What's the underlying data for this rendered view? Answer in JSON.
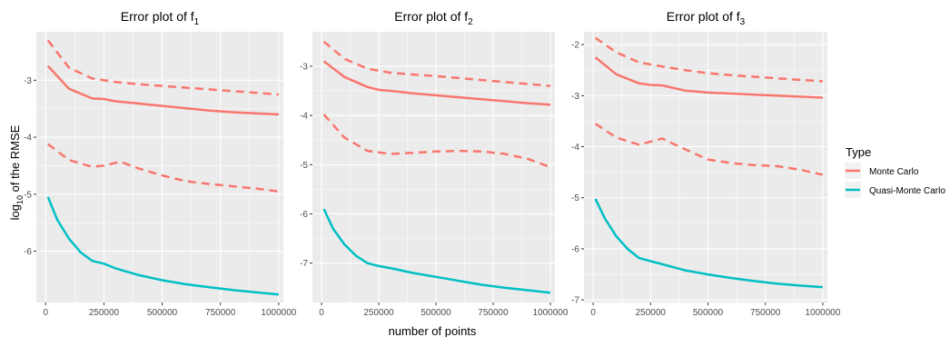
{
  "figure": {
    "ylabel_main": "log",
    "ylabel_sub": "10",
    "ylabel_rest": " of the RMSE",
    "xlabel": "number of points"
  },
  "legend": {
    "title": "Type",
    "items": [
      {
        "label": "Monte Carlo",
        "color": "#F8766D"
      },
      {
        "label": "Quasi-Monte Carlo",
        "color": "#00BFC4"
      }
    ]
  },
  "colors": {
    "panel_bg": "#EBEBEB",
    "grid_major": "#FFFFFF",
    "mc": "#F8766D",
    "qmc": "#00BFC4"
  },
  "chart_data": [
    {
      "type": "line",
      "title_main": "Error plot of f",
      "title_sub": "1",
      "xlim": [
        -40000,
        1020000
      ],
      "ylim": [
        -6.9,
        -2.15
      ],
      "x_ticks": [
        0,
        250000,
        500000,
        750000,
        1000000
      ],
      "x_tick_labels": [
        "0",
        "250000",
        "500000",
        "750000",
        "1000000"
      ],
      "y_ticks": [
        -3,
        -4,
        -5,
        -6
      ],
      "y_tick_labels": [
        "-3",
        "-4",
        "-5",
        "-6"
      ],
      "series": [
        {
          "name": "Monte Carlo",
          "style": "solid",
          "x": [
            10000,
            100000,
            200000,
            250000,
            300000,
            400000,
            500000,
            600000,
            700000,
            800000,
            900000,
            1000000
          ],
          "y": [
            -2.75,
            -3.15,
            -3.32,
            -3.33,
            -3.37,
            -3.41,
            -3.45,
            -3.49,
            -3.53,
            -3.56,
            -3.58,
            -3.6
          ]
        },
        {
          "name": "Monte Carlo",
          "style": "dashed",
          "x": [
            10000,
            100000,
            200000,
            300000,
            400000,
            500000,
            600000,
            700000,
            800000,
            900000,
            1000000
          ],
          "y": [
            -2.3,
            -2.78,
            -2.97,
            -3.03,
            -3.07,
            -3.1,
            -3.13,
            -3.16,
            -3.19,
            -3.22,
            -3.25
          ]
        },
        {
          "name": "Monte Carlo",
          "style": "dashed",
          "x": [
            10000,
            100000,
            200000,
            250000,
            320000,
            400000,
            500000,
            600000,
            700000,
            800000,
            900000,
            1000000
          ],
          "y": [
            -4.12,
            -4.4,
            -4.52,
            -4.5,
            -4.43,
            -4.55,
            -4.67,
            -4.77,
            -4.82,
            -4.86,
            -4.9,
            -4.95
          ]
        },
        {
          "name": "Quasi-Monte Carlo",
          "style": "solid",
          "x": [
            10000,
            50000,
            100000,
            150000,
            200000,
            250000,
            300000,
            400000,
            500000,
            600000,
            700000,
            800000,
            900000,
            1000000
          ],
          "y": [
            -5.05,
            -5.45,
            -5.78,
            -6.02,
            -6.17,
            -6.22,
            -6.3,
            -6.42,
            -6.51,
            -6.58,
            -6.63,
            -6.68,
            -6.72,
            -6.76
          ]
        }
      ]
    },
    {
      "type": "line",
      "title_main": "Error plot of f",
      "title_sub": "2",
      "xlim": [
        -40000,
        1020000
      ],
      "ylim": [
        -7.8,
        -2.3
      ],
      "x_ticks": [
        0,
        250000,
        500000,
        750000,
        1000000
      ],
      "x_tick_labels": [
        "0",
        "250000",
        "500000",
        "750000",
        "1000000"
      ],
      "y_ticks": [
        -3,
        -4,
        -5,
        -6,
        -7
      ],
      "y_tick_labels": [
        "-3",
        "-4",
        "-5",
        "-6",
        "-7"
      ],
      "series": [
        {
          "name": "Monte Carlo",
          "style": "solid",
          "x": [
            10000,
            100000,
            200000,
            250000,
            300000,
            400000,
            500000,
            600000,
            700000,
            800000,
            900000,
            1000000
          ],
          "y": [
            -2.9,
            -3.22,
            -3.42,
            -3.48,
            -3.5,
            -3.55,
            -3.59,
            -3.63,
            -3.67,
            -3.71,
            -3.75,
            -3.78
          ]
        },
        {
          "name": "Monte Carlo",
          "style": "dashed",
          "x": [
            10000,
            100000,
            200000,
            300000,
            400000,
            500000,
            600000,
            700000,
            800000,
            900000,
            1000000
          ],
          "y": [
            -2.5,
            -2.85,
            -3.05,
            -3.13,
            -3.17,
            -3.2,
            -3.24,
            -3.28,
            -3.32,
            -3.36,
            -3.4
          ]
        },
        {
          "name": "Monte Carlo",
          "style": "dashed",
          "x": [
            10000,
            100000,
            200000,
            300000,
            400000,
            500000,
            600000,
            700000,
            800000,
            900000,
            1000000
          ],
          "y": [
            -3.98,
            -4.45,
            -4.72,
            -4.78,
            -4.76,
            -4.73,
            -4.72,
            -4.73,
            -4.78,
            -4.88,
            -5.05
          ]
        },
        {
          "name": "Quasi-Monte Carlo",
          "style": "solid",
          "x": [
            10000,
            50000,
            100000,
            150000,
            200000,
            250000,
            300000,
            400000,
            500000,
            600000,
            700000,
            800000,
            900000,
            1000000
          ],
          "y": [
            -5.9,
            -6.3,
            -6.62,
            -6.85,
            -7.0,
            -7.06,
            -7.1,
            -7.2,
            -7.28,
            -7.36,
            -7.44,
            -7.5,
            -7.55,
            -7.6
          ]
        }
      ]
    },
    {
      "type": "line",
      "title_main": "Error plot of f",
      "title_sub": "3",
      "xlim": [
        -40000,
        1020000
      ],
      "ylim": [
        -7.05,
        -1.75
      ],
      "x_ticks": [
        0,
        250000,
        500000,
        750000,
        1000000
      ],
      "x_tick_labels": [
        "0",
        "250000",
        "500000",
        "750000",
        "1000000"
      ],
      "y_ticks": [
        -2,
        -3,
        -4,
        -5,
        -6,
        -7
      ],
      "y_tick_labels": [
        "-2",
        "-3",
        "-4",
        "-5",
        "-6",
        "-7"
      ],
      "series": [
        {
          "name": "Monte Carlo",
          "style": "solid",
          "x": [
            10000,
            100000,
            200000,
            250000,
            300000,
            400000,
            500000,
            600000,
            700000,
            800000,
            900000,
            1000000
          ],
          "y": [
            -2.25,
            -2.58,
            -2.76,
            -2.79,
            -2.8,
            -2.9,
            -2.94,
            -2.96,
            -2.98,
            -3.0,
            -3.02,
            -3.04
          ]
        },
        {
          "name": "Monte Carlo",
          "style": "dashed",
          "x": [
            10000,
            100000,
            200000,
            300000,
            400000,
            500000,
            600000,
            700000,
            800000,
            900000,
            1000000
          ],
          "y": [
            -1.87,
            -2.15,
            -2.35,
            -2.43,
            -2.5,
            -2.56,
            -2.6,
            -2.63,
            -2.66,
            -2.69,
            -2.72
          ]
        },
        {
          "name": "Monte Carlo",
          "style": "dashed",
          "x": [
            10000,
            100000,
            200000,
            250000,
            300000,
            400000,
            500000,
            600000,
            700000,
            800000,
            900000,
            1000000
          ],
          "y": [
            -3.55,
            -3.82,
            -3.96,
            -3.9,
            -3.84,
            -4.05,
            -4.25,
            -4.32,
            -4.36,
            -4.38,
            -4.45,
            -4.55
          ]
        },
        {
          "name": "Quasi-Monte Carlo",
          "style": "solid",
          "x": [
            10000,
            50000,
            100000,
            150000,
            200000,
            250000,
            300000,
            400000,
            500000,
            600000,
            700000,
            800000,
            900000,
            1000000
          ],
          "y": [
            -5.02,
            -5.4,
            -5.75,
            -6.0,
            -6.18,
            -6.24,
            -6.3,
            -6.42,
            -6.5,
            -6.57,
            -6.63,
            -6.68,
            -6.72,
            -6.75
          ]
        }
      ]
    }
  ]
}
